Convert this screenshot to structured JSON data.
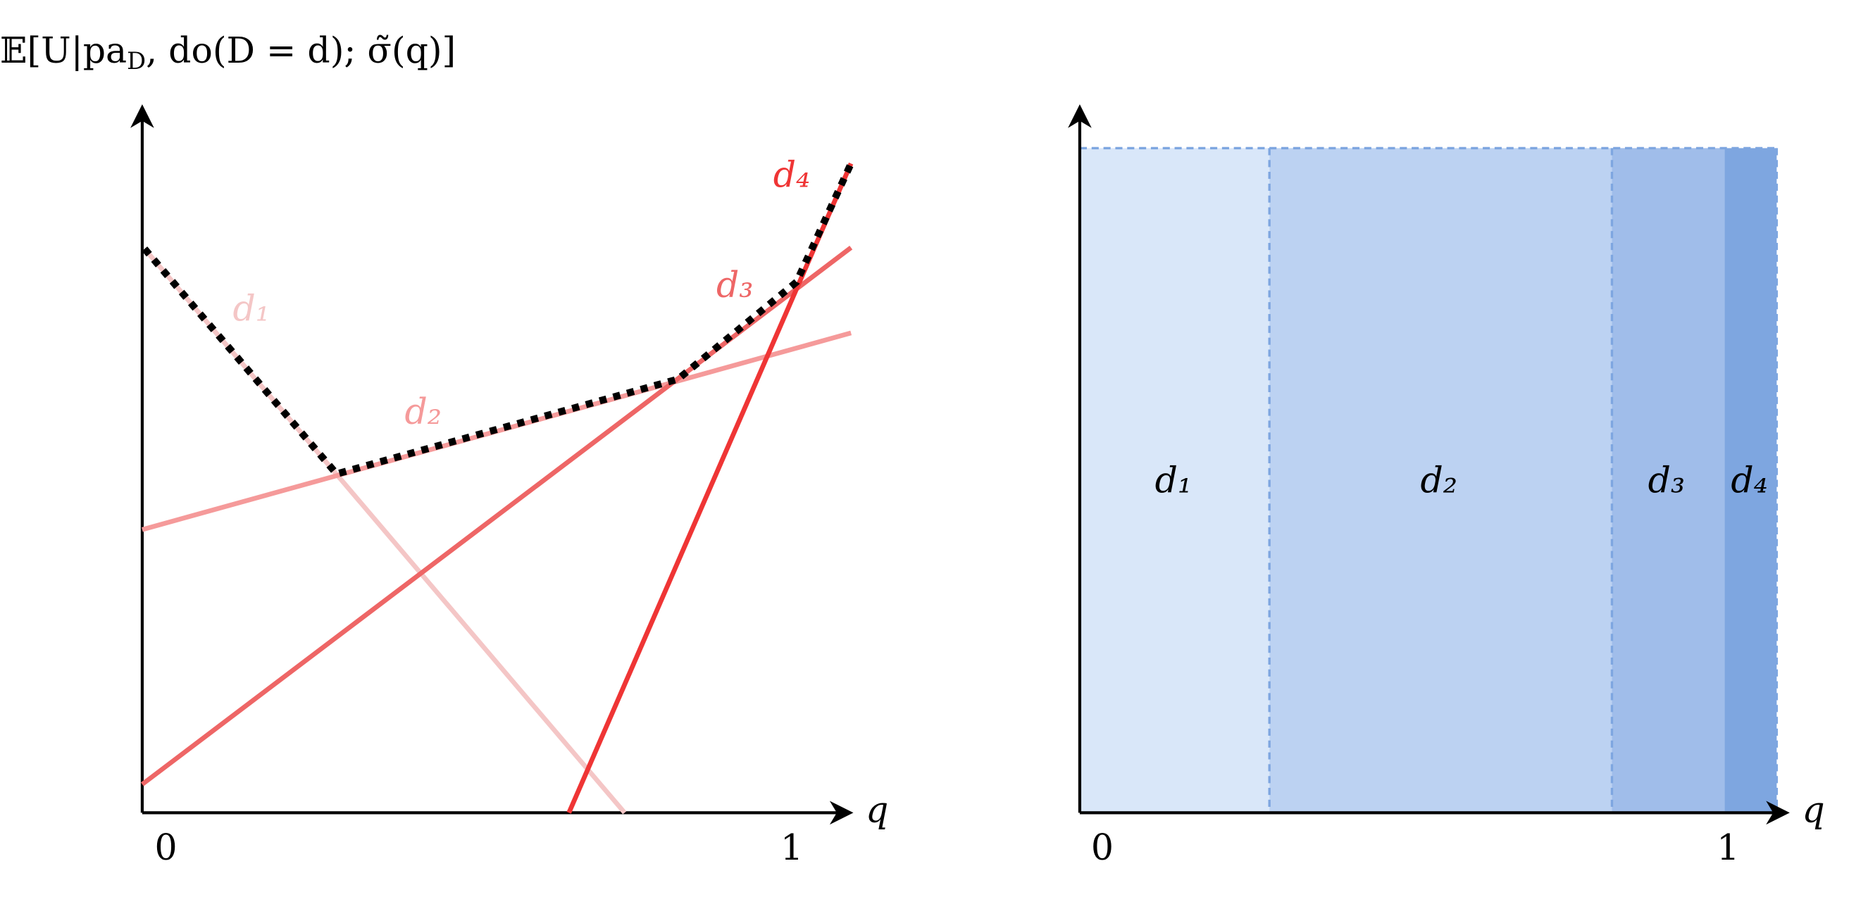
{
  "left_panel": {
    "y_label": {
      "main": "𝔼[U|pa",
      "sub": "D",
      "rest": ", do(D = d); σ̃(q)]"
    },
    "x_label": "q",
    "x_start": "0",
    "x_end": "1",
    "line_labels": [
      "d₁",
      "d₂",
      "d₃",
      "d₄"
    ]
  },
  "right_panel": {
    "x_label": "q",
    "x_start": "0",
    "x_end": "1",
    "region_labels": [
      "d₁",
      "d₂",
      "d₃",
      "d₄"
    ]
  }
}
